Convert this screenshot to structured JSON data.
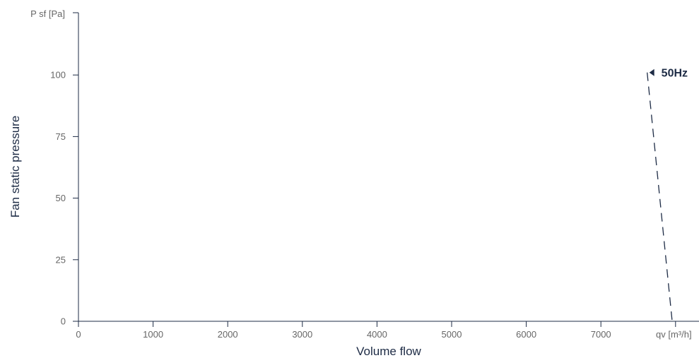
{
  "chart_data": {
    "type": "line",
    "xlabel": "Volume flow",
    "ylabel": "Fan static pressure",
    "x_unit_label": "qv [m³/h]",
    "y_unit_label": "P sf [Pa]",
    "xlim": [
      0,
      8300
    ],
    "ylim": [
      0,
      125
    ],
    "x_ticks": [
      0,
      1000,
      2000,
      3000,
      4000,
      5000,
      6000,
      7000
    ],
    "y_ticks": [
      0,
      25,
      50,
      75,
      100
    ],
    "grid": false,
    "series": [
      {
        "name": "50Hz",
        "line_style": "dashed",
        "color": "#1d2b45",
        "x": [
          7620,
          7955
        ],
        "y": [
          101,
          0
        ]
      }
    ]
  }
}
